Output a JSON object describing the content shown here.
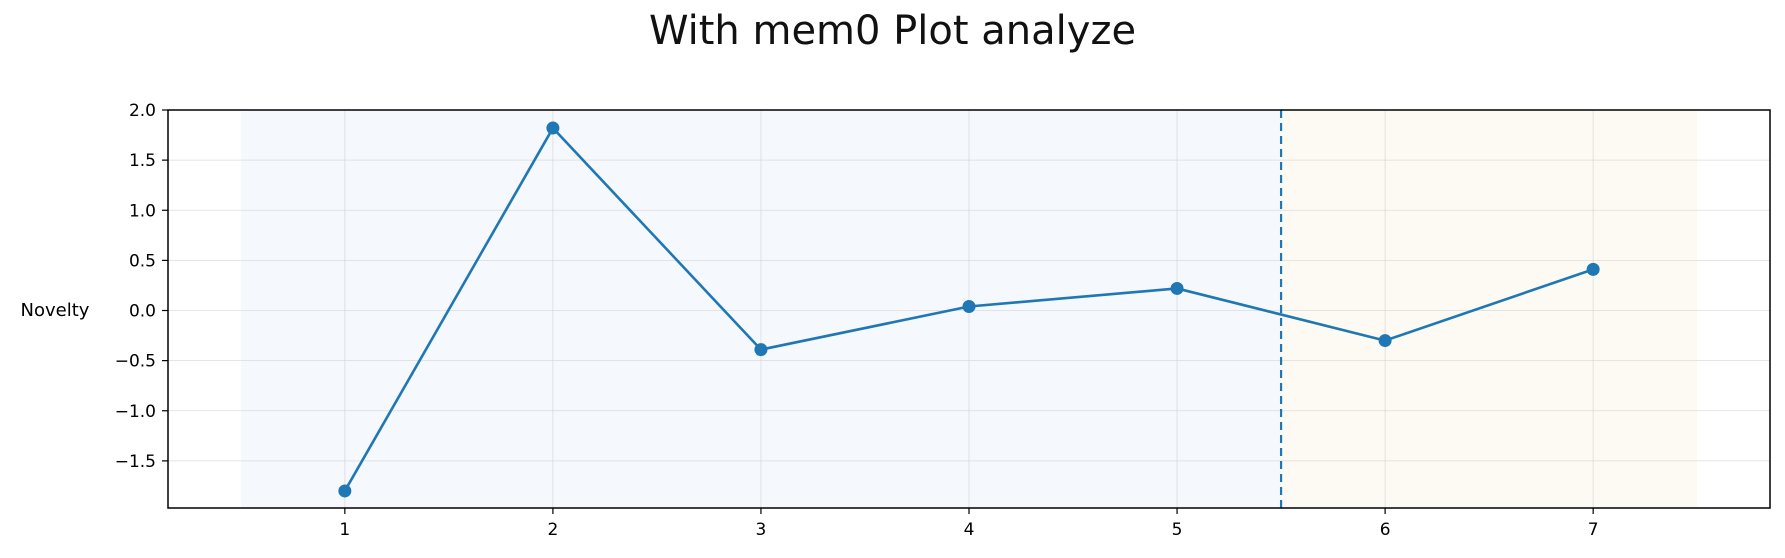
{
  "chart_data": {
    "type": "line",
    "title": "With mem0 Plot analyze",
    "xlabel": "",
    "ylabel": "Novelty",
    "x": [
      1,
      2,
      3,
      4,
      5,
      6,
      7
    ],
    "series": [
      {
        "values": [
          -1.8,
          1.82,
          -0.39,
          0.04,
          0.22,
          -0.3,
          0.41
        ],
        "color": "#1f77b4"
      }
    ],
    "xlim": [
      0.15,
      7.85
    ],
    "ylim": [
      -1.97,
      2.0
    ],
    "xticks": [
      "1",
      "2",
      "3",
      "4",
      "5",
      "6",
      "7"
    ],
    "yticks": [
      {
        "value": 2.0,
        "label": "2.0"
      },
      {
        "value": 1.5,
        "label": "1.5"
      },
      {
        "value": 1.0,
        "label": "1.0"
      },
      {
        "value": 0.5,
        "label": "0.5"
      },
      {
        "value": 0.0,
        "label": "0.0"
      },
      {
        "value": -0.5,
        "label": "−0.5"
      },
      {
        "value": -1.0,
        "label": "−1.0"
      },
      {
        "value": -1.5,
        "label": "−1.5"
      }
    ],
    "regions": [
      {
        "x_start": 0.5,
        "x_end": 5.5,
        "color": "#f5f8fc"
      },
      {
        "x_start": 5.5,
        "x_end": 7.5,
        "color": "#fdf9f3"
      }
    ],
    "vline": {
      "x": 5.5,
      "color": "#1f77b4",
      "style": "dashed"
    },
    "grid": true
  }
}
